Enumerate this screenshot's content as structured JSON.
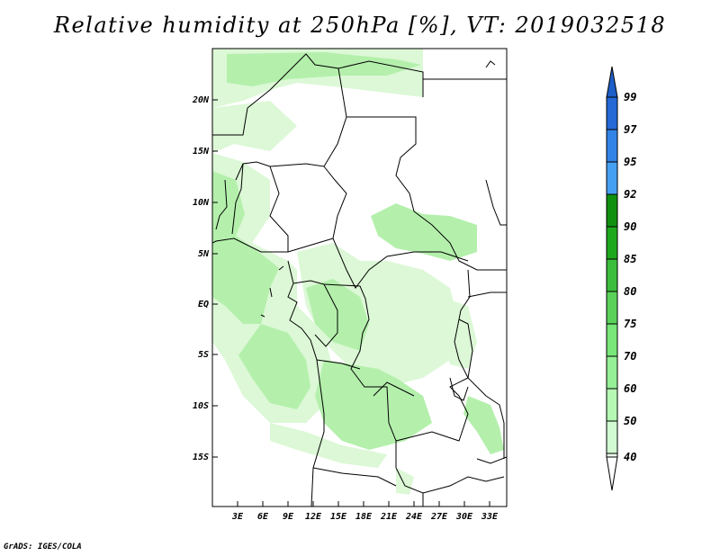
{
  "title": "Relative humidity at 250hPa [%], VT: 2019032518",
  "credit": "GrADS: IGES/COLA",
  "map": {
    "lat_labels": [
      "20N",
      "15N",
      "10N",
      "5N",
      "EQ",
      "5S",
      "10S",
      "15S"
    ],
    "lon_labels": [
      "3E",
      "6E",
      "9E",
      "12E",
      "15E",
      "18E",
      "21E",
      "24E",
      "27E",
      "30E",
      "33E"
    ],
    "shading_colors": {
      "light": "#dcf8d6",
      "mid": "#b4f0ac",
      "dark": "#94e488"
    },
    "border_color": "#000000"
  },
  "colorbar": {
    "labels": [
      "99",
      "97",
      "95",
      "92",
      "90",
      "85",
      "80",
      "75",
      "70",
      "60",
      "50",
      "40"
    ],
    "colors": [
      "#2568d6",
      "#3283e6",
      "#46a0f2",
      "#0f910f",
      "#1ea81e",
      "#3cbe3c",
      "#5ad25a",
      "#78e678",
      "#96f096",
      "#b4f8b4",
      "#d2fad2",
      "#ebfdeb"
    ],
    "top_arrow_color": "#1e5fc8",
    "bottom_arrow_color": "#ffffff"
  }
}
